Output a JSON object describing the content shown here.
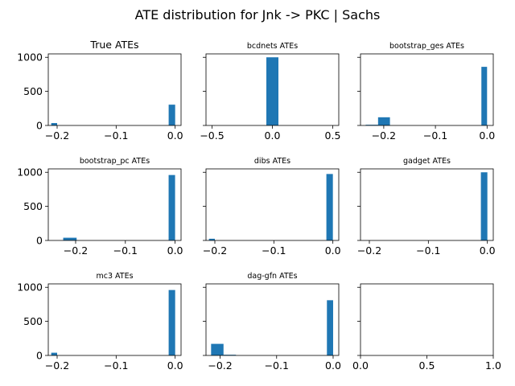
{
  "figure": {
    "title": "ATE distribution for Jnk -> PKC | Sachs"
  },
  "colors": {
    "bar": "#1f77b4",
    "axis": "#000000",
    "background": "#ffffff"
  },
  "chart_data": [
    {
      "type": "bar",
      "title": "True ATEs",
      "xlim": [
        -0.215,
        0.01
      ],
      "xticks": [
        -0.2,
        -0.1,
        0.0
      ],
      "xticklabels": [
        "−0.2",
        "−0.1",
        "0.0"
      ],
      "ylim": [
        0,
        1050
      ],
      "yticks": [
        0,
        500,
        1000
      ],
      "yticklabels": [
        "0",
        "500",
        "1000"
      ],
      "bins": [
        {
          "x0": -0.21,
          "x1": -0.2,
          "count": 35
        },
        {
          "x0": -0.011,
          "x1": 0.0,
          "count": 305
        }
      ]
    },
    {
      "type": "bar",
      "title": "bcdnets ATEs",
      "xlim": [
        -0.55,
        0.55
      ],
      "xticks": [
        -0.5,
        0.0,
        0.5
      ],
      "xticklabels": [
        "−0.5",
        "0.0",
        "0.5"
      ],
      "ylim": [
        0,
        1050
      ],
      "yticks": [
        0,
        500,
        1000
      ],
      "yticklabels": [
        "",
        "",
        ""
      ],
      "bins": [
        {
          "x0": -0.05,
          "x1": 0.05,
          "count": 1000
        }
      ]
    },
    {
      "type": "bar",
      "title": "bootstrap_ges ATEs",
      "xlim": [
        -0.245,
        0.012
      ],
      "xticks": [
        -0.2,
        -0.1,
        0.0
      ],
      "xticklabels": [
        "−0.2",
        "−0.1",
        "0.0"
      ],
      "ylim": [
        0,
        1050
      ],
      "yticks": [
        0,
        500,
        1000
      ],
      "yticklabels": [
        "",
        "",
        ""
      ],
      "bins": [
        {
          "x0": -0.235,
          "x1": -0.211,
          "count": 10
        },
        {
          "x0": -0.211,
          "x1": -0.188,
          "count": 120
        },
        {
          "x0": -0.011,
          "x1": 0.0,
          "count": 860
        }
      ]
    },
    {
      "type": "bar",
      "title": "bootstrap_pc ATEs",
      "xlim": [
        -0.255,
        0.012
      ],
      "xticks": [
        -0.2,
        -0.1,
        0.0
      ],
      "xticklabels": [
        "−0.2",
        "−0.1",
        "0.0"
      ],
      "ylim": [
        0,
        1050
      ],
      "yticks": [
        0,
        500,
        1000
      ],
      "yticklabels": [
        "0",
        "500",
        "1000"
      ],
      "bins": [
        {
          "x0": -0.225,
          "x1": -0.198,
          "count": 40
        },
        {
          "x0": -0.013,
          "x1": 0.0,
          "count": 960
        }
      ]
    },
    {
      "type": "bar",
      "title": "dibs ATEs",
      "xlim": [
        -0.215,
        0.01
      ],
      "xticks": [
        -0.2,
        -0.1,
        0.0
      ],
      "xticklabels": [
        "−0.2",
        "−0.1",
        "0.0"
      ],
      "ylim": [
        0,
        1050
      ],
      "yticks": [
        0,
        500,
        1000
      ],
      "yticklabels": [
        "",
        "",
        ""
      ],
      "bins": [
        {
          "x0": -0.21,
          "x1": -0.2,
          "count": 25
        },
        {
          "x0": -0.011,
          "x1": 0.0,
          "count": 975
        }
      ]
    },
    {
      "type": "bar",
      "title": "gadget ATEs",
      "xlim": [
        -0.215,
        0.01
      ],
      "xticks": [
        -0.2,
        -0.1,
        0.0
      ],
      "xticklabels": [
        "−0.2",
        "−0.1",
        "0.0"
      ],
      "ylim": [
        0,
        1050
      ],
      "yticks": [
        0,
        500,
        1000
      ],
      "yticklabels": [
        "",
        "",
        ""
      ],
      "bins": [
        {
          "x0": -0.011,
          "x1": 0.0,
          "count": 1000
        }
      ]
    },
    {
      "type": "bar",
      "title": "mc3 ATEs",
      "xlim": [
        -0.215,
        0.01
      ],
      "xticks": [
        -0.2,
        -0.1,
        0.0
      ],
      "xticklabels": [
        "−0.2",
        "−0.1",
        "0.0"
      ],
      "ylim": [
        0,
        1050
      ],
      "yticks": [
        0,
        500,
        1000
      ],
      "yticklabels": [
        "0",
        "500",
        "1000"
      ],
      "bins": [
        {
          "x0": -0.21,
          "x1": -0.2,
          "count": 40
        },
        {
          "x0": -0.011,
          "x1": 0.0,
          "count": 960
        }
      ]
    },
    {
      "type": "bar",
      "title": "dag-gfn ATEs",
      "xlim": [
        -0.225,
        0.01
      ],
      "xticks": [
        -0.2,
        -0.1,
        0.0
      ],
      "xticklabels": [
        "−0.2",
        "−0.1",
        "0.0"
      ],
      "ylim": [
        0,
        1050
      ],
      "yticks": [
        0,
        500,
        1000
      ],
      "yticklabels": [
        "",
        "",
        ""
      ],
      "bins": [
        {
          "x0": -0.216,
          "x1": -0.194,
          "count": 170
        },
        {
          "x0": -0.194,
          "x1": -0.172,
          "count": 10
        },
        {
          "x0": -0.011,
          "x1": 0.0,
          "count": 810
        }
      ]
    },
    {
      "type": "bar",
      "title": "",
      "xlim": [
        0,
        1
      ],
      "xticks": [
        0,
        0.5,
        1.0
      ],
      "xticklabels": [
        "0.0",
        "0.5",
        "1.0"
      ],
      "ylim": [
        0,
        1050
      ],
      "yticks": [
        0,
        500,
        1000
      ],
      "yticklabels": [
        "",
        "",
        ""
      ],
      "bins": []
    }
  ]
}
